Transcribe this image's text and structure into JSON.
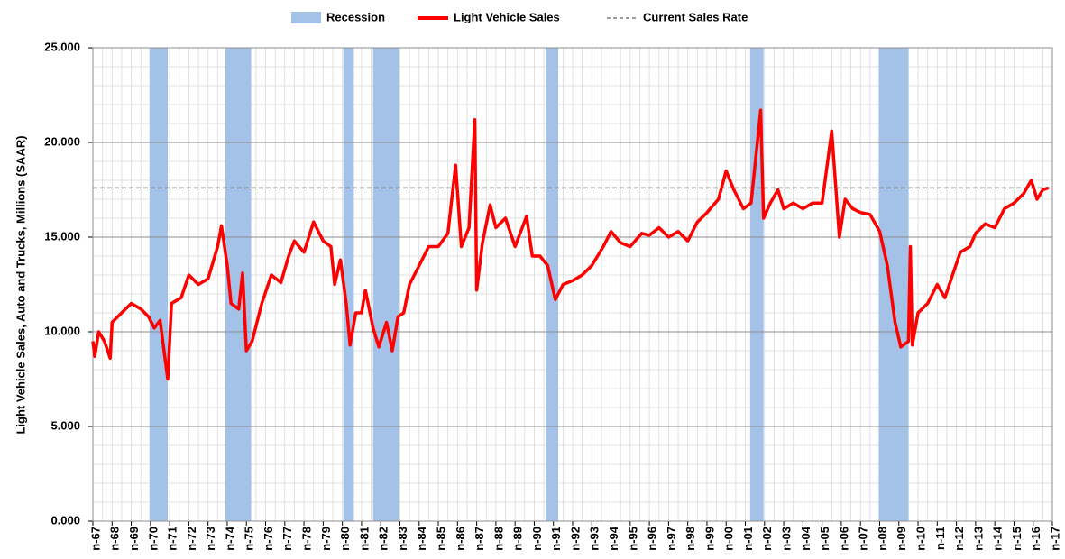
{
  "chart_data": {
    "type": "line",
    "y_axis_label": "Light Vehicle Sales, Auto and Trucks, Millions (SAAR)",
    "xlim": [
      1967,
      2017
    ],
    "xticks": [
      {
        "value": 1967,
        "label": "n-67"
      },
      {
        "value": 1968,
        "label": "n-68"
      },
      {
        "value": 1969,
        "label": "n-69"
      },
      {
        "value": 1970,
        "label": "n-70"
      },
      {
        "value": 1971,
        "label": "n-71"
      },
      {
        "value": 1972,
        "label": "n-72"
      },
      {
        "value": 1973,
        "label": "n-73"
      },
      {
        "value": 1974,
        "label": "n-74"
      },
      {
        "value": 1975,
        "label": "n-75"
      },
      {
        "value": 1976,
        "label": "n-76"
      },
      {
        "value": 1977,
        "label": "n-77"
      },
      {
        "value": 1978,
        "label": "n-78"
      },
      {
        "value": 1979,
        "label": "n-79"
      },
      {
        "value": 1980,
        "label": "n-80"
      },
      {
        "value": 1981,
        "label": "n-81"
      },
      {
        "value": 1982,
        "label": "n-82"
      },
      {
        "value": 1983,
        "label": "n-83"
      },
      {
        "value": 1984,
        "label": "n-84"
      },
      {
        "value": 1985,
        "label": "n-85"
      },
      {
        "value": 1986,
        "label": "n-86"
      },
      {
        "value": 1987,
        "label": "n-87"
      },
      {
        "value": 1988,
        "label": "n-88"
      },
      {
        "value": 1989,
        "label": "n-89"
      },
      {
        "value": 1990,
        "label": "n-90"
      },
      {
        "value": 1991,
        "label": "n-91"
      },
      {
        "value": 1992,
        "label": "n-92"
      },
      {
        "value": 1993,
        "label": "n-93"
      },
      {
        "value": 1994,
        "label": "n-94"
      },
      {
        "value": 1995,
        "label": "n-95"
      },
      {
        "value": 1996,
        "label": "n-96"
      },
      {
        "value": 1997,
        "label": "n-97"
      },
      {
        "value": 1998,
        "label": "n-98"
      },
      {
        "value": 1999,
        "label": "n-99"
      },
      {
        "value": 2000,
        "label": "n-00"
      },
      {
        "value": 2001,
        "label": "n-01"
      },
      {
        "value": 2002,
        "label": "n-02"
      },
      {
        "value": 2003,
        "label": "n-03"
      },
      {
        "value": 2004,
        "label": "n-04"
      },
      {
        "value": 2005,
        "label": "n-05"
      },
      {
        "value": 2006,
        "label": "n-06"
      },
      {
        "value": 2007,
        "label": "n-07"
      },
      {
        "value": 2008,
        "label": "n-08"
      },
      {
        "value": 2009,
        "label": "n-09"
      },
      {
        "value": 2010,
        "label": "n-10"
      },
      {
        "value": 2011,
        "label": "n-11"
      },
      {
        "value": 2012,
        "label": "n-12"
      },
      {
        "value": 2013,
        "label": "n-13"
      },
      {
        "value": 2014,
        "label": "n-14"
      },
      {
        "value": 2015,
        "label": "n-15"
      },
      {
        "value": 2016,
        "label": "n-16"
      },
      {
        "value": 2017,
        "label": "n-17"
      }
    ],
    "ylim": [
      0,
      25
    ],
    "yticks": [
      {
        "value": 0,
        "label": "0.000"
      },
      {
        "value": 5,
        "label": "5.000"
      },
      {
        "value": 10,
        "label": "10.000"
      },
      {
        "value": 15,
        "label": "15.000"
      },
      {
        "value": 20,
        "label": "20.000"
      },
      {
        "value": 25,
        "label": "25.000"
      }
    ],
    "grid": true,
    "legend_position": "top",
    "recession": {
      "name": "Recession",
      "color": "#a4c2e8",
      "periods": [
        {
          "start": 1969.95,
          "end": 1970.9
        },
        {
          "start": 1973.9,
          "end": 1975.25
        },
        {
          "start": 1980.05,
          "end": 1980.6
        },
        {
          "start": 1981.6,
          "end": 1982.95
        },
        {
          "start": 1990.6,
          "end": 1991.25
        },
        {
          "start": 2001.25,
          "end": 2001.95
        },
        {
          "start": 2007.95,
          "end": 2009.5
        }
      ]
    },
    "series": [
      {
        "name": "Light Vehicle Sales",
        "color": "#ff0000",
        "x": [
          1967,
          1967.1,
          1967.3,
          1967.6,
          1967.9,
          1968,
          1968.5,
          1969,
          1969.5,
          1969.9,
          1970.2,
          1970.5,
          1970.9,
          1971.1,
          1971.6,
          1972,
          1972.5,
          1973,
          1973.5,
          1973.7,
          1974,
          1974.2,
          1974.6,
          1974.8,
          1975,
          1975.3,
          1975.8,
          1976.3,
          1976.8,
          1977.2,
          1977.5,
          1978,
          1978.5,
          1979,
          1979.4,
          1979.6,
          1979.9,
          1980.2,
          1980.4,
          1980.7,
          1981,
          1981.2,
          1981.6,
          1981.9,
          1982.3,
          1982.6,
          1982.9,
          1983.2,
          1983.5,
          1984,
          1984.5,
          1985,
          1985.5,
          1985.9,
          1986.2,
          1986.6,
          1986.9,
          1987,
          1987.3,
          1987.7,
          1988,
          1988.5,
          1989,
          1989.6,
          1989.9,
          1990.3,
          1990.7,
          1991.1,
          1991.5,
          1992,
          1992.5,
          1993,
          1993.6,
          1994,
          1994.5,
          1995,
          1995.6,
          1996,
          1996.5,
          1997,
          1997.5,
          1998,
          1998.5,
          1999,
          1999.6,
          2000,
          2000.4,
          2000.9,
          2001.3,
          2001.8,
          2001.95,
          2002.3,
          2002.7,
          2003,
          2003.5,
          2004,
          2004.5,
          2005,
          2005.5,
          2005.9,
          2006.2,
          2006.6,
          2007,
          2007.5,
          2008,
          2008.4,
          2008.8,
          2009.1,
          2009.5,
          2009.6,
          2009.7,
          2010,
          2010.5,
          2011,
          2011.4,
          2011.8,
          2012.2,
          2012.7,
          2013,
          2013.5,
          2014,
          2014.5,
          2015,
          2015.5,
          2015.9,
          2016.2,
          2016.5,
          2016.8
        ],
        "values": [
          9.5,
          8.7,
          10.0,
          9.5,
          8.6,
          10.5,
          11.0,
          11.5,
          11.2,
          10.8,
          10.2,
          10.6,
          7.5,
          11.5,
          11.8,
          13.0,
          12.5,
          12.8,
          14.5,
          15.6,
          13.5,
          11.5,
          11.2,
          13.1,
          9.0,
          9.5,
          11.5,
          13.0,
          12.6,
          14.0,
          14.8,
          14.2,
          15.8,
          14.8,
          14.5,
          12.5,
          13.8,
          11.5,
          9.3,
          11.0,
          11.0,
          12.2,
          10.2,
          9.2,
          10.5,
          9.0,
          10.8,
          11.0,
          12.5,
          13.5,
          14.5,
          14.5,
          15.2,
          18.8,
          14.5,
          15.5,
          21.2,
          12.2,
          14.7,
          16.7,
          15.5,
          16.0,
          14.5,
          16.1,
          14.0,
          14.0,
          13.5,
          11.7,
          12.5,
          12.7,
          13.0,
          13.5,
          14.5,
          15.3,
          14.7,
          14.5,
          15.2,
          15.1,
          15.5,
          15.0,
          15.3,
          14.8,
          15.8,
          16.3,
          17.0,
          18.5,
          17.5,
          16.5,
          16.8,
          21.7,
          16.0,
          16.8,
          17.5,
          16.5,
          16.8,
          16.5,
          16.8,
          16.8,
          20.6,
          15.0,
          17.0,
          16.5,
          16.3,
          16.2,
          15.3,
          13.5,
          10.5,
          9.2,
          9.5,
          14.5,
          9.3,
          11.0,
          11.5,
          12.5,
          11.8,
          13.0,
          14.2,
          14.5,
          15.2,
          15.7,
          15.5,
          16.5,
          16.8,
          17.3,
          18.0,
          17.0,
          17.5,
          17.6
        ]
      }
    ],
    "reference_line": {
      "name": "Current Sales Rate",
      "value": 17.6,
      "color": "#7f7f7f"
    }
  }
}
